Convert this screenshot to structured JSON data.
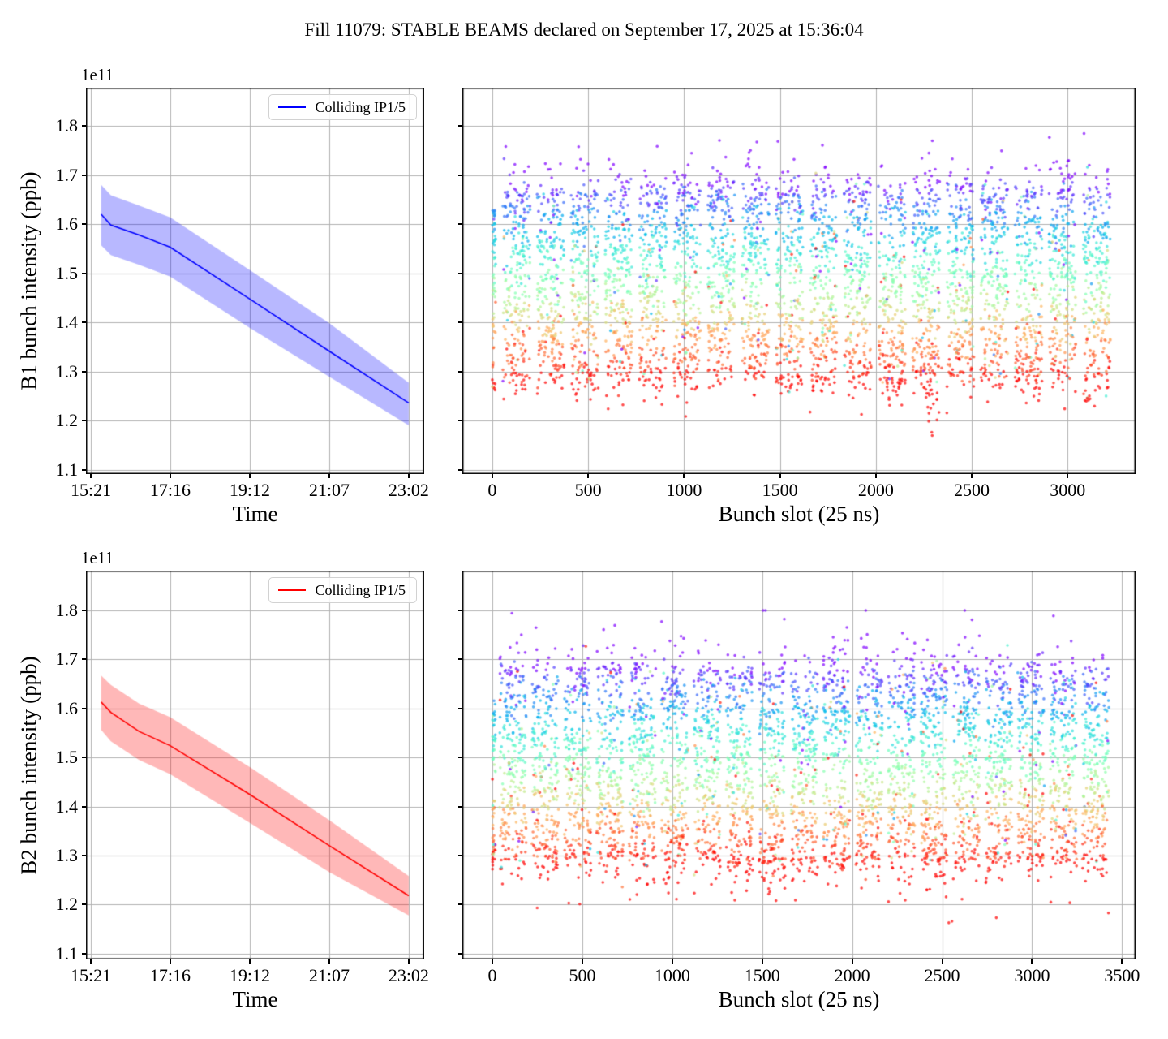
{
  "title": "Fill 11079: STABLE BEAMS declared on September 17, 2025 at 15:36:04",
  "style": {
    "background": "#ffffff",
    "grid_color": "#b0b0b0",
    "frame_color": "#000000",
    "text_color": "#000000",
    "b1_accent": "#0000ff",
    "b2_accent": "#ff0000"
  },
  "chart_data": [
    {
      "id": "b1_time",
      "type": "line",
      "xlabel": "Time",
      "ylabel": "B1 bunch intensity (ppb)",
      "offset_text": "1e11",
      "legend": [
        "Colliding IP1/5"
      ],
      "legend_position": "upper right",
      "line_color": "#0000ff",
      "band_rgb": "0,0,255",
      "band_alpha": 0.28,
      "grid": true,
      "x_tick_labels": [
        "15:21",
        "17:16",
        "19:12",
        "21:07",
        "23:02"
      ],
      "x_tick_values": [
        0,
        115.25,
        230.5,
        345.75,
        461
      ],
      "xlim": [
        -7.1,
        483.5
      ],
      "x_unit": "minutes since 15:21",
      "y_tick_labels": [
        "1.1",
        "1.2",
        "1.3",
        "1.4",
        "1.5",
        "1.6",
        "1.7",
        "1.8"
      ],
      "y_tick_values": [
        1.1,
        1.2,
        1.3,
        1.4,
        1.5,
        1.6,
        1.7,
        1.8
      ],
      "ylim": [
        1.091,
        1.878
      ],
      "y_unit": "1e11 ppb",
      "series": {
        "name": "Colliding IP1/5",
        "x": [
          15,
          29,
          70,
          115,
          231,
          346,
          461
        ],
        "mean": [
          1.62,
          1.598,
          1.578,
          1.553,
          1.447,
          1.341,
          1.236
        ],
        "upper": [
          1.68,
          1.659,
          1.638,
          1.614,
          1.506,
          1.398,
          1.277
        ],
        "lower": [
          1.557,
          1.537,
          1.517,
          1.493,
          1.388,
          1.289,
          1.19
        ]
      }
    },
    {
      "id": "b1_scatter",
      "type": "scatter",
      "xlabel": "Bunch slot (25 ns)",
      "ylabel": "",
      "x_tick_labels": [
        "0",
        "500",
        "1000",
        "1500",
        "2000",
        "2500",
        "3000"
      ],
      "x_tick_values": [
        0,
        500,
        1000,
        1500,
        2000,
        2500,
        3000
      ],
      "xlim": [
        -156,
        3354
      ],
      "y_tick_labels": [],
      "y_tick_values": [
        1.1,
        1.2,
        1.3,
        1.4,
        1.5,
        1.6,
        1.7,
        1.8
      ],
      "ylim": [
        1.091,
        1.878
      ],
      "grid": true,
      "marker": {
        "radius": 1.8,
        "alpha": 0.7
      },
      "colormap": {
        "name": "rainbow",
        "vmin": 1.28,
        "vmax": 1.695,
        "mapping": "high intensity = violet, low intensity = red"
      },
      "pilot_column": {
        "slot_start": 0,
        "slot_end": 18,
        "count": 65,
        "y_min": 1.26,
        "y_max": 1.63
      },
      "trains": {
        "count": 18,
        "first_slot": 55,
        "period": 178,
        "width": 142,
        "points_per_train": 255
      },
      "y_distribution": {
        "core_frac": 0.82,
        "core_min": 1.295,
        "core_max": 1.657,
        "upper_tail_frac": 0.1,
        "upper_tail_scale": 0.025,
        "upper_max": 1.845,
        "lower_tail_frac": 0.08,
        "lower_tail_scale": 0.02,
        "lower_min": 1.195
      },
      "dip": {
        "slot_center": 2300,
        "slot_sigma": 25,
        "count": 40,
        "y_min": 1.112,
        "y_max": 1.34
      },
      "seed": 7
    },
    {
      "id": "b2_time",
      "type": "line",
      "xlabel": "Time",
      "ylabel": "B2 bunch intensity (ppb)",
      "offset_text": "1e11",
      "legend": [
        "Colliding IP1/5"
      ],
      "legend_position": "upper right",
      "line_color": "#ff0000",
      "band_rgb": "255,0,0",
      "band_alpha": 0.28,
      "grid": true,
      "x_tick_labels": [
        "15:21",
        "17:16",
        "19:12",
        "21:07",
        "23:02"
      ],
      "x_tick_values": [
        0,
        115.25,
        230.5,
        345.75,
        461
      ],
      "xlim": [
        -7.1,
        483.5
      ],
      "x_unit": "minutes since 15:21",
      "y_tick_labels": [
        "1.1",
        "1.2",
        "1.3",
        "1.4",
        "1.5",
        "1.6",
        "1.7",
        "1.8"
      ],
      "y_tick_values": [
        1.1,
        1.2,
        1.3,
        1.4,
        1.5,
        1.6,
        1.7,
        1.8
      ],
      "ylim": [
        1.088,
        1.881
      ],
      "y_unit": "1e11 ppb",
      "series": {
        "name": "Colliding IP1/5",
        "x": [
          15,
          29,
          70,
          115,
          231,
          346,
          461
        ],
        "mean": [
          1.613,
          1.592,
          1.553,
          1.524,
          1.424,
          1.32,
          1.218
        ],
        "upper": [
          1.667,
          1.648,
          1.61,
          1.582,
          1.48,
          1.372,
          1.258
        ],
        "lower": [
          1.556,
          1.533,
          1.495,
          1.466,
          1.366,
          1.266,
          1.178
        ]
      }
    },
    {
      "id": "b2_scatter",
      "type": "scatter",
      "xlabel": "Bunch slot (25 ns)",
      "ylabel": "",
      "x_tick_labels": [
        "0",
        "500",
        "1000",
        "1500",
        "2000",
        "2500",
        "3000",
        "3500"
      ],
      "x_tick_values": [
        0,
        500,
        1000,
        1500,
        2000,
        2500,
        3000,
        3500
      ],
      "xlim": [
        -167,
        3575
      ],
      "y_tick_labels": [],
      "y_tick_values": [
        1.1,
        1.2,
        1.3,
        1.4,
        1.5,
        1.6,
        1.7,
        1.8
      ],
      "ylim": [
        1.088,
        1.881
      ],
      "grid": true,
      "marker": {
        "radius": 1.8,
        "alpha": 0.7
      },
      "colormap": {
        "name": "rainbow",
        "vmin": 1.28,
        "vmax": 1.695,
        "mapping": "high intensity = violet, low intensity = red"
      },
      "pilot_column": {
        "slot_start": 0,
        "slot_end": 18,
        "count": 65,
        "y_min": 1.27,
        "y_max": 1.62
      },
      "trains": {
        "count": 19,
        "first_slot": 40,
        "period": 180,
        "width": 148,
        "points_per_train": 255
      },
      "y_distribution": {
        "core_frac": 0.8,
        "core_min": 1.3,
        "core_max": 1.655,
        "upper_tail_frac": 0.1,
        "upper_tail_scale": 0.027,
        "upper_max": 1.8,
        "lower_tail_frac": 0.1,
        "lower_tail_scale": 0.024,
        "lower_min": 1.145
      },
      "dip": {
        "slot_center": 2480,
        "slot_sigma": 40,
        "count": 24,
        "y_min": 1.15,
        "y_max": 1.33
      },
      "seed": 13
    }
  ]
}
